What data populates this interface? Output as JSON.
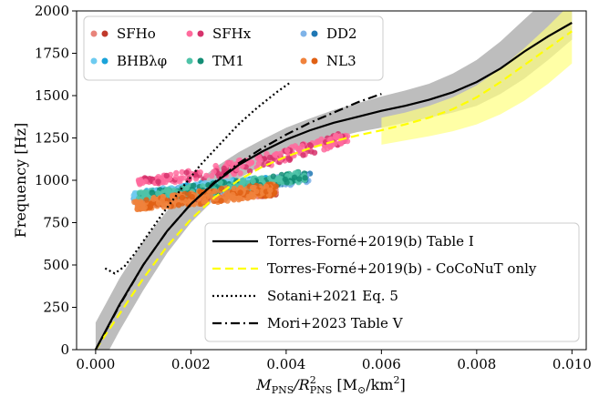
{
  "chart_data": {
    "type": "scatter",
    "xlabel": "M_PNS/R_PNS^2 [M_⊙/km^2]",
    "xlabel_parts": {
      "main": "M",
      "sub1": "PNS",
      "mid": "/R",
      "sup": "2",
      "sub2": "PNS",
      "unit": " [M",
      "unit_sub": "⊙",
      "unit_end": "/km",
      "unit_sup": "2",
      "close": "]"
    },
    "ylabel": "Frequency [Hz]",
    "xlim": [
      -0.0004,
      0.0103
    ],
    "ylim": [
      0,
      2000
    ],
    "xticks": [
      "0.000",
      "0.002",
      "0.004",
      "0.006",
      "0.008",
      "0.010"
    ],
    "xtick_values": [
      0.0,
      0.002,
      0.004,
      0.006,
      0.008,
      0.01
    ],
    "yticks": [
      "0",
      "250",
      "500",
      "750",
      "1000",
      "1250",
      "1500",
      "1750",
      "2000"
    ],
    "ytick_values": [
      0,
      250,
      500,
      750,
      1000,
      1250,
      1500,
      1750,
      2000
    ],
    "grid": false,
    "scatter_legend_position": "top-left",
    "line_legend_position": "bottom-right",
    "scatter_series": [
      {
        "name": "SFHo",
        "color": "#e8837a",
        "color2": "#c0392b",
        "marker": "circle",
        "band": {
          "x": [
            0.0009,
            0.0014,
            0.002,
            0.0026,
            0.0032,
            0.0038
          ],
          "lo": [
            845,
            855,
            870,
            880,
            895,
            910
          ],
          "hi": [
            895,
            920,
            945,
            960,
            975,
            990
          ]
        }
      },
      {
        "name": "SFHx",
        "color": "#ff6b9d",
        "color2": "#d6336c",
        "marker": "plus",
        "band": {
          "x": [
            0.0009,
            0.0016,
            0.0024,
            0.0032,
            0.004,
            0.0048,
            0.0053
          ],
          "lo": [
            975,
            985,
            1010,
            1050,
            1110,
            1180,
            1230
          ],
          "hi": [
            1010,
            1040,
            1080,
            1130,
            1190,
            1250,
            1290
          ]
        }
      },
      {
        "name": "DD2",
        "color": "#7fb3e8",
        "color2": "#1f77b4",
        "marker": "square",
        "band": {
          "x": [
            0.0008,
            0.0015,
            0.0022,
            0.003,
            0.0038,
            0.0045
          ],
          "lo": [
            860,
            880,
            905,
            935,
            960,
            985
          ],
          "hi": [
            920,
            950,
            975,
            1000,
            1020,
            1040
          ]
        }
      },
      {
        "name": "BHBλφ",
        "color": "#6ecbf0",
        "color2": "#1aa3d9",
        "marker": "star",
        "band": {
          "x": [
            0.0008,
            0.0015,
            0.0022,
            0.003,
            0.0036
          ],
          "lo": [
            880,
            900,
            920,
            945,
            965
          ],
          "hi": [
            930,
            960,
            985,
            1005,
            1020
          ]
        }
      },
      {
        "name": "TM1",
        "color": "#4fc3a8",
        "color2": "#138d75",
        "marker": "diamond",
        "band": {
          "x": [
            0.0009,
            0.0016,
            0.0024,
            0.0032,
            0.004,
            0.0044
          ],
          "lo": [
            880,
            895,
            915,
            940,
            975,
            995
          ],
          "hi": [
            930,
            955,
            980,
            1010,
            1040,
            1055
          ]
        }
      },
      {
        "name": "NL3",
        "color": "#f0823c",
        "color2": "#e06014",
        "marker": "asterisk",
        "band": {
          "x": [
            0.0008,
            0.0014,
            0.002,
            0.0027,
            0.0034,
            0.0038
          ],
          "lo": [
            825,
            840,
            855,
            875,
            900,
            915
          ],
          "hi": [
            880,
            905,
            930,
            955,
            970,
            980
          ]
        }
      }
    ],
    "bands": [
      {
        "name": "grey",
        "color": "#bdbdbd",
        "x": [
          0.0,
          0.0005,
          0.001,
          0.0015,
          0.002,
          0.0025,
          0.003,
          0.0035,
          0.004,
          0.0045,
          0.005,
          0.0055,
          0.006,
          0.0065,
          0.007,
          0.0075,
          0.008,
          0.0085,
          0.009,
          0.0095,
          0.01
        ],
        "lo": [
          -150,
          110,
          350,
          570,
          750,
          890,
          1010,
          1090,
          1160,
          1210,
          1250,
          1285,
          1310,
          1340,
          1370,
          1400,
          1440,
          1510,
          1600,
          1710,
          1830
        ],
        "hi": [
          160,
          420,
          640,
          820,
          960,
          1075,
          1165,
          1240,
          1310,
          1365,
          1415,
          1455,
          1495,
          1530,
          1570,
          1630,
          1710,
          1820,
          1950,
          2080,
          2220
        ]
      },
      {
        "name": "yellow",
        "color": "#ffff80",
        "x": [
          0.006,
          0.0065,
          0.007,
          0.0075,
          0.008,
          0.0085,
          0.009,
          0.0095,
          0.01
        ],
        "lo": [
          1210,
          1235,
          1260,
          1290,
          1330,
          1390,
          1470,
          1570,
          1690
        ],
        "hi": [
          1370,
          1400,
          1440,
          1490,
          1560,
          1660,
          1780,
          1910,
          2050
        ]
      }
    ],
    "lines": [
      {
        "name": "Torres-Forné+2019(b) Table I",
        "style": "solid",
        "color": "#000000",
        "x": [
          0.0,
          0.0005,
          0.001,
          0.0015,
          0.002,
          0.0025,
          0.003,
          0.0035,
          0.004,
          0.0045,
          0.005,
          0.0055,
          0.006,
          0.0065,
          0.007,
          0.0075,
          0.008,
          0.0085,
          0.009,
          0.0095,
          0.01
        ],
        "y": [
          0,
          265,
          500,
          700,
          860,
          985,
          1090,
          1170,
          1240,
          1295,
          1340,
          1375,
          1410,
          1440,
          1475,
          1520,
          1580,
          1660,
          1760,
          1850,
          1930
        ]
      },
      {
        "name": "Torres-Forné+2019(b) - CoCoNuT only",
        "style": "dashed",
        "color": "#ffff00",
        "x": [
          0.0,
          0.0005,
          0.001,
          0.0015,
          0.002,
          0.0025,
          0.003,
          0.0035,
          0.004,
          0.0045,
          0.005,
          0.0055,
          0.006,
          0.0065,
          0.007,
          0.0075,
          0.008,
          0.0085,
          0.009,
          0.0095,
          0.01
        ],
        "y": [
          0,
          210,
          420,
          610,
          770,
          900,
          1000,
          1080,
          1140,
          1190,
          1230,
          1265,
          1295,
          1330,
          1370,
          1420,
          1490,
          1580,
          1680,
          1780,
          1880
        ]
      },
      {
        "name": "Sotani+2021 Eq. 5",
        "style": "dotted",
        "color": "#000000",
        "x": [
          0.0002,
          0.0004,
          0.0006,
          0.0008,
          0.001,
          0.0014,
          0.0018,
          0.0022,
          0.0026,
          0.003,
          0.0034,
          0.0038,
          0.0041
        ],
        "y": [
          480,
          450,
          490,
          560,
          640,
          800,
          950,
          1090,
          1210,
          1330,
          1430,
          1520,
          1580
        ]
      },
      {
        "name": "Mori+2023 Table V",
        "style": "dashdot",
        "color": "#000000",
        "x": [
          0.0,
          0.0005,
          0.001,
          0.0015,
          0.002,
          0.0025,
          0.003,
          0.0035,
          0.004,
          0.0045,
          0.005,
          0.0055,
          0.006
        ],
        "y": [
          0,
          260,
          500,
          700,
          860,
          990,
          1100,
          1190,
          1270,
          1340,
          1400,
          1460,
          1510
        ]
      }
    ]
  }
}
